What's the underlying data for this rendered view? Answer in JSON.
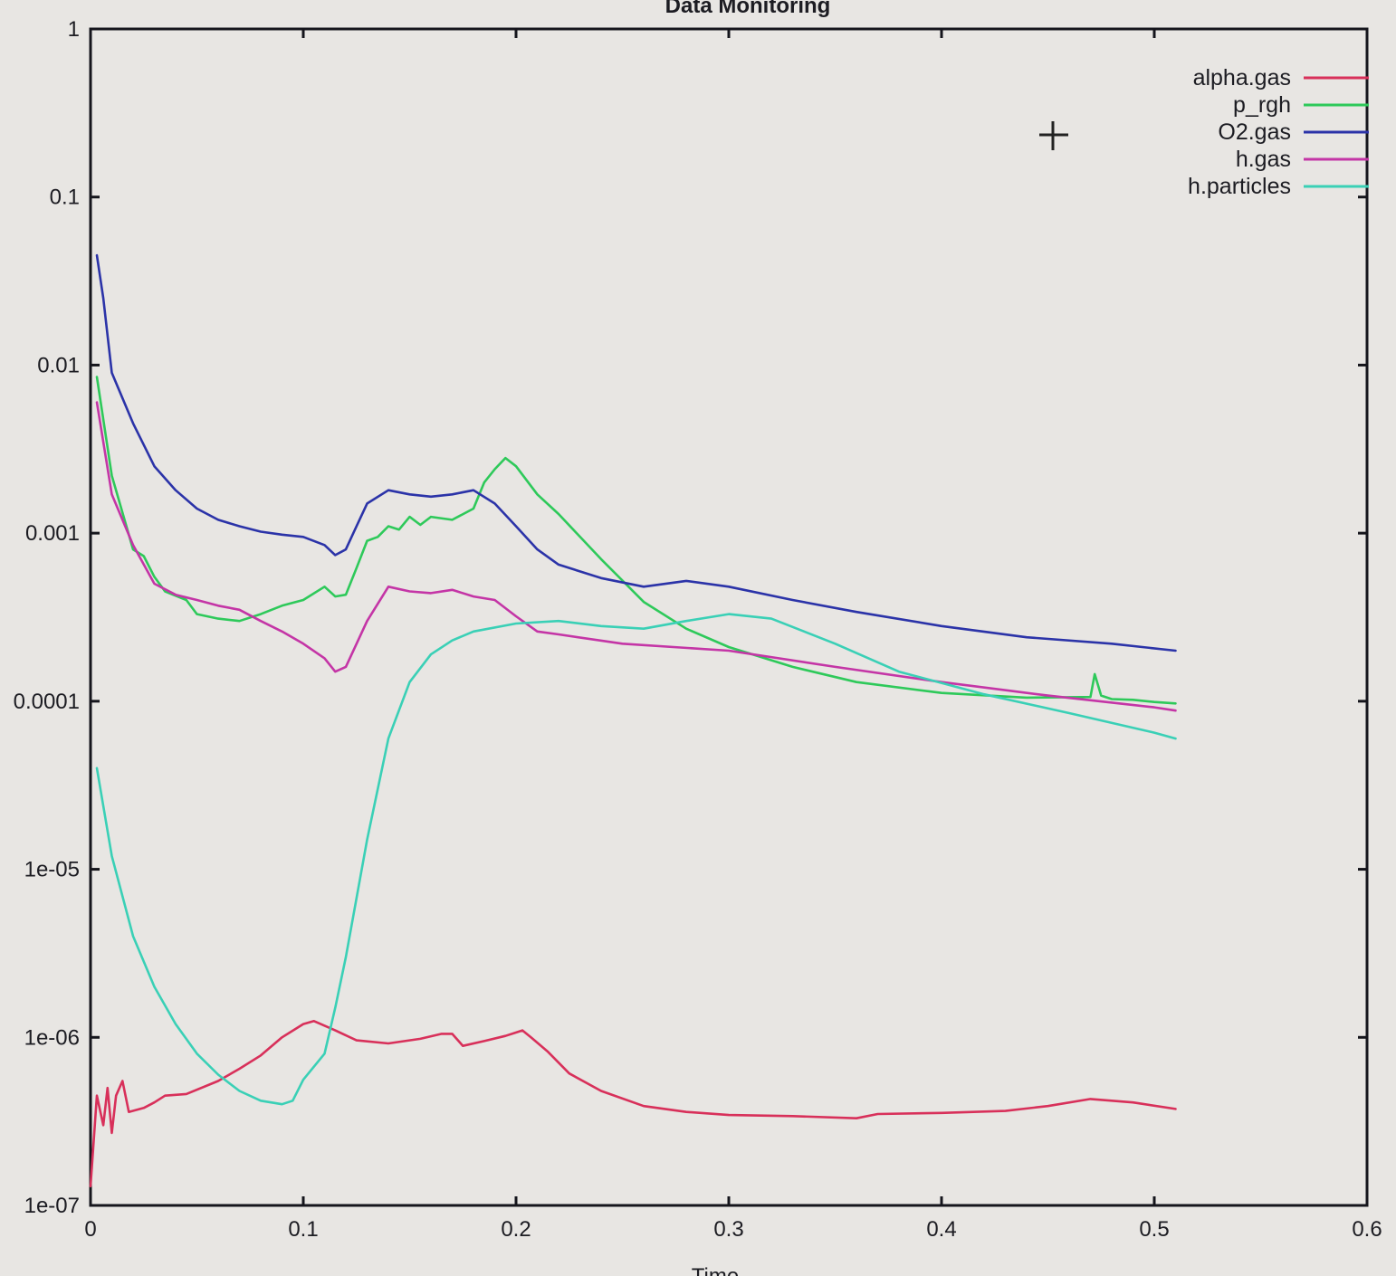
{
  "chart_data": {
    "type": "line",
    "title": "Data Monitoring",
    "xlabel": "Time",
    "ylabel": "",
    "xlim": [
      0,
      0.6
    ],
    "ylim": [
      1e-07,
      1
    ],
    "yscale": "log",
    "grid": false,
    "legend_position": "top-right",
    "x_ticks": [
      "0",
      "0.1",
      "0.2",
      "0.3",
      "0.4",
      "0.5",
      "0.6"
    ],
    "y_ticks": [
      "1e-07",
      "1e-06",
      "1e-05",
      "0.0001",
      "0.001",
      "0.01",
      "0.1",
      "1"
    ],
    "cursor_marker": "crosshair",
    "series": [
      {
        "name": "alpha.gas",
        "color": "#d8305a",
        "points": [
          [
            0.0,
            1.3e-07
          ],
          [
            0.003,
            4.5e-07
          ],
          [
            0.006,
            3e-07
          ],
          [
            0.008,
            5e-07
          ],
          [
            0.01,
            2.7e-07
          ],
          [
            0.012,
            4.5e-07
          ],
          [
            0.015,
            5.5e-07
          ],
          [
            0.018,
            3.6e-07
          ],
          [
            0.025,
            3.8e-07
          ],
          [
            0.03,
            4.1e-07
          ],
          [
            0.035,
            4.5e-07
          ],
          [
            0.045,
            4.6e-07
          ],
          [
            0.06,
            5.5e-07
          ],
          [
            0.07,
            6.5e-07
          ],
          [
            0.08,
            7.8e-07
          ],
          [
            0.09,
            1e-06
          ],
          [
            0.1,
            1.2e-06
          ],
          [
            0.105,
            1.25e-06
          ],
          [
            0.115,
            1.1e-06
          ],
          [
            0.125,
            9.6e-07
          ],
          [
            0.14,
            9.2e-07
          ],
          [
            0.155,
            9.8e-07
          ],
          [
            0.165,
            1.05e-06
          ],
          [
            0.17,
            1.05e-06
          ],
          [
            0.175,
            8.9e-07
          ],
          [
            0.185,
            9.5e-07
          ],
          [
            0.195,
            1.02e-06
          ],
          [
            0.203,
            1.1e-06
          ],
          [
            0.207,
            1e-06
          ],
          [
            0.215,
            8.2e-07
          ],
          [
            0.225,
            6.1e-07
          ],
          [
            0.24,
            4.8e-07
          ],
          [
            0.26,
            3.9e-07
          ],
          [
            0.28,
            3.6e-07
          ],
          [
            0.3,
            3.45e-07
          ],
          [
            0.33,
            3.4e-07
          ],
          [
            0.36,
            3.3e-07
          ],
          [
            0.37,
            3.5e-07
          ],
          [
            0.4,
            3.55e-07
          ],
          [
            0.43,
            3.65e-07
          ],
          [
            0.45,
            3.9e-07
          ],
          [
            0.47,
            4.3e-07
          ],
          [
            0.49,
            4.1e-07
          ],
          [
            0.51,
            3.75e-07
          ]
        ]
      },
      {
        "name": "p_rgh",
        "color": "#2ec95a",
        "points": [
          [
            0.003,
            0.0085
          ],
          [
            0.01,
            0.0022
          ],
          [
            0.02,
            0.0008
          ],
          [
            0.025,
            0.00073
          ],
          [
            0.03,
            0.00055
          ],
          [
            0.035,
            0.00045
          ],
          [
            0.045,
            0.0004
          ],
          [
            0.05,
            0.00033
          ],
          [
            0.06,
            0.00031
          ],
          [
            0.07,
            0.0003
          ],
          [
            0.08,
            0.00033
          ],
          [
            0.09,
            0.00037
          ],
          [
            0.1,
            0.0004
          ],
          [
            0.11,
            0.00048
          ],
          [
            0.115,
            0.00042
          ],
          [
            0.12,
            0.00043
          ],
          [
            0.125,
            0.00062
          ],
          [
            0.13,
            0.0009
          ],
          [
            0.135,
            0.00095
          ],
          [
            0.14,
            0.0011
          ],
          [
            0.145,
            0.00105
          ],
          [
            0.15,
            0.00125
          ],
          [
            0.155,
            0.00112
          ],
          [
            0.16,
            0.00125
          ],
          [
            0.17,
            0.0012
          ],
          [
            0.18,
            0.0014
          ],
          [
            0.185,
            0.002
          ],
          [
            0.19,
            0.0024
          ],
          [
            0.195,
            0.0028
          ],
          [
            0.2,
            0.0025
          ],
          [
            0.21,
            0.0017
          ],
          [
            0.22,
            0.0013
          ],
          [
            0.24,
            0.0007
          ],
          [
            0.26,
            0.00039
          ],
          [
            0.28,
            0.00027
          ],
          [
            0.3,
            0.00021
          ],
          [
            0.33,
            0.00016
          ],
          [
            0.36,
            0.00013
          ],
          [
            0.4,
            0.000112
          ],
          [
            0.44,
            0.000105
          ],
          [
            0.47,
            0.000106
          ],
          [
            0.472,
            0.000145
          ],
          [
            0.475,
            0.000108
          ],
          [
            0.48,
            0.000103
          ],
          [
            0.49,
            0.000102
          ],
          [
            0.5,
            9.9e-05
          ],
          [
            0.51,
            9.7e-05
          ]
        ]
      },
      {
        "name": "O2.gas",
        "color": "#2b33a8",
        "points": [
          [
            0.003,
            0.045
          ],
          [
            0.006,
            0.025
          ],
          [
            0.01,
            0.009
          ],
          [
            0.02,
            0.0045
          ],
          [
            0.03,
            0.0025
          ],
          [
            0.04,
            0.0018
          ],
          [
            0.05,
            0.0014
          ],
          [
            0.06,
            0.0012
          ],
          [
            0.07,
            0.0011
          ],
          [
            0.08,
            0.00102
          ],
          [
            0.09,
            0.00098
          ],
          [
            0.1,
            0.00095
          ],
          [
            0.11,
            0.00085
          ],
          [
            0.115,
            0.00074
          ],
          [
            0.12,
            0.0008
          ],
          [
            0.125,
            0.0011
          ],
          [
            0.13,
            0.0015
          ],
          [
            0.14,
            0.0018
          ],
          [
            0.15,
            0.0017
          ],
          [
            0.16,
            0.00165
          ],
          [
            0.17,
            0.0017
          ],
          [
            0.18,
            0.0018
          ],
          [
            0.19,
            0.0015
          ],
          [
            0.2,
            0.0011
          ],
          [
            0.21,
            0.0008
          ],
          [
            0.22,
            0.00065
          ],
          [
            0.24,
            0.00054
          ],
          [
            0.26,
            0.00048
          ],
          [
            0.28,
            0.00052
          ],
          [
            0.3,
            0.00048
          ],
          [
            0.33,
            0.0004
          ],
          [
            0.36,
            0.00034
          ],
          [
            0.4,
            0.00028
          ],
          [
            0.44,
            0.00024
          ],
          [
            0.48,
            0.00022
          ],
          [
            0.51,
            0.0002
          ]
        ]
      },
      {
        "name": "h.gas",
        "color": "#c435a6",
        "points": [
          [
            0.003,
            0.006
          ],
          [
            0.01,
            0.0017
          ],
          [
            0.02,
            0.00085
          ],
          [
            0.03,
            0.0005
          ],
          [
            0.04,
            0.00043
          ],
          [
            0.05,
            0.0004
          ],
          [
            0.06,
            0.00037
          ],
          [
            0.07,
            0.00035
          ],
          [
            0.08,
            0.0003
          ],
          [
            0.09,
            0.00026
          ],
          [
            0.1,
            0.00022
          ],
          [
            0.11,
            0.00018
          ],
          [
            0.115,
            0.00015
          ],
          [
            0.12,
            0.00016
          ],
          [
            0.13,
            0.0003
          ],
          [
            0.14,
            0.00048
          ],
          [
            0.15,
            0.00045
          ],
          [
            0.16,
            0.00044
          ],
          [
            0.17,
            0.00046
          ],
          [
            0.18,
            0.00042
          ],
          [
            0.19,
            0.0004
          ],
          [
            0.2,
            0.00032
          ],
          [
            0.21,
            0.00026
          ],
          [
            0.22,
            0.00025
          ],
          [
            0.25,
            0.00022
          ],
          [
            0.3,
            0.0002
          ],
          [
            0.35,
            0.00016
          ],
          [
            0.4,
            0.00013
          ],
          [
            0.45,
            0.000108
          ],
          [
            0.5,
            9.2e-05
          ],
          [
            0.51,
            8.8e-05
          ]
        ]
      },
      {
        "name": "h.particles",
        "color": "#3ad0b6",
        "points": [
          [
            0.003,
            4e-05
          ],
          [
            0.01,
            1.2e-05
          ],
          [
            0.02,
            4e-06
          ],
          [
            0.03,
            2e-06
          ],
          [
            0.04,
            1.2e-06
          ],
          [
            0.05,
            8e-07
          ],
          [
            0.06,
            6e-07
          ],
          [
            0.07,
            4.8e-07
          ],
          [
            0.08,
            4.2e-07
          ],
          [
            0.09,
            4e-07
          ],
          [
            0.095,
            4.2e-07
          ],
          [
            0.1,
            5.6e-07
          ],
          [
            0.11,
            8e-07
          ],
          [
            0.115,
            1.5e-06
          ],
          [
            0.12,
            3e-06
          ],
          [
            0.13,
            1.5e-05
          ],
          [
            0.14,
            6e-05
          ],
          [
            0.15,
            0.00013
          ],
          [
            0.16,
            0.00019
          ],
          [
            0.17,
            0.00023
          ],
          [
            0.18,
            0.00026
          ],
          [
            0.2,
            0.00029
          ],
          [
            0.22,
            0.0003
          ],
          [
            0.24,
            0.00028
          ],
          [
            0.26,
            0.00027
          ],
          [
            0.28,
            0.0003
          ],
          [
            0.3,
            0.00033
          ],
          [
            0.32,
            0.00031
          ],
          [
            0.35,
            0.00022
          ],
          [
            0.38,
            0.00015
          ],
          [
            0.42,
            0.00011
          ],
          [
            0.46,
            8.5e-05
          ],
          [
            0.5,
            6.5e-05
          ],
          [
            0.51,
            6e-05
          ]
        ]
      }
    ]
  }
}
